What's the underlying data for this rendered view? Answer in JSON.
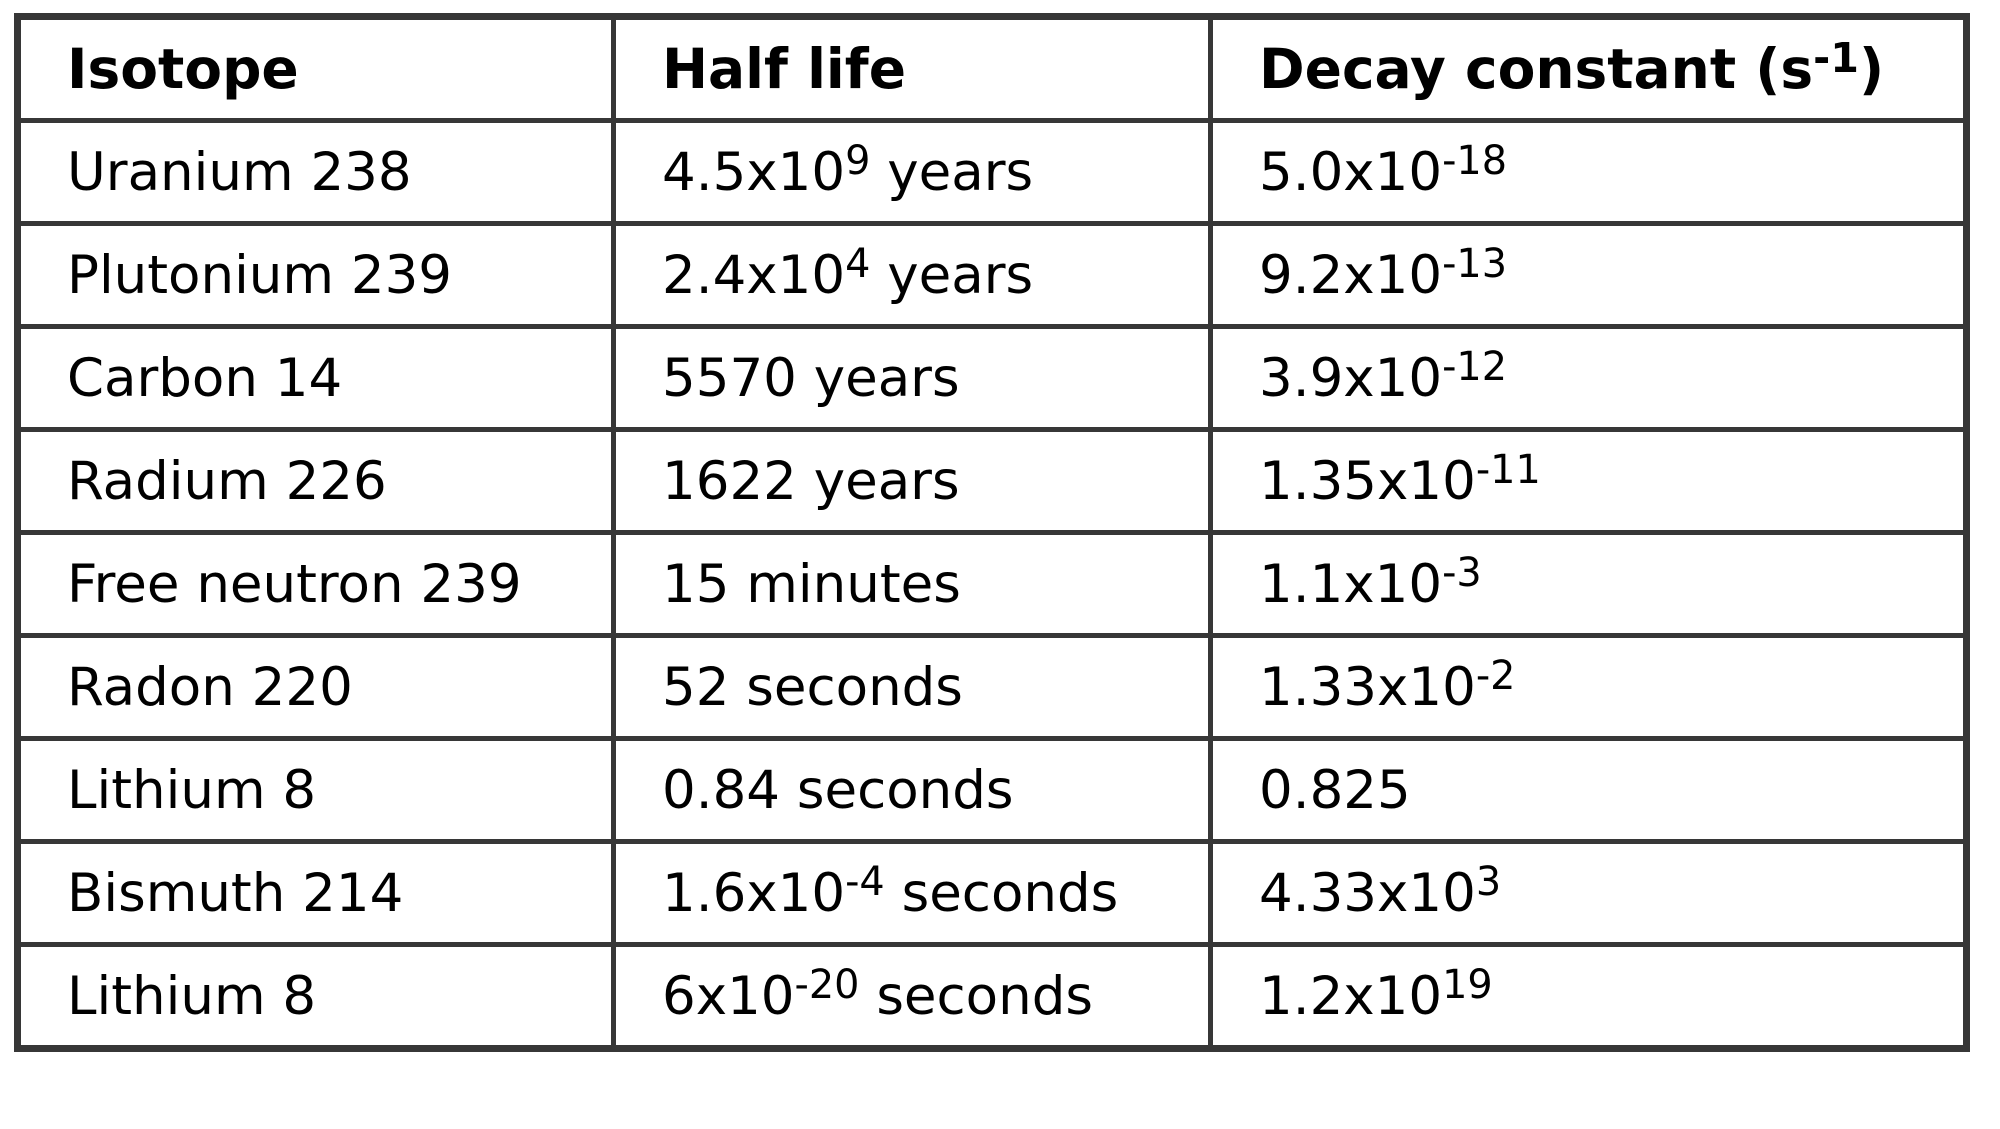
{
  "page": {
    "background": "#ffffff",
    "border_color": "#373737",
    "text_color": "#000000"
  },
  "table": {
    "columns": [
      {
        "label": "Isotope"
      },
      {
        "label": "Half life"
      },
      {
        "label": "Decay constant (s^-1)"
      }
    ],
    "rows": [
      [
        "Uranium 238",
        "4.5x10^9 years",
        "5.0x10^-18"
      ],
      [
        "Plutonium 239",
        "2.4x10^4 years",
        "9.2x10^-13"
      ],
      [
        "Carbon 14",
        "5570 years",
        "3.9x10^-12"
      ],
      [
        "Radium 226",
        "1622 years",
        "1.35x10^-11"
      ],
      [
        "Free neutron 239",
        "15 minutes",
        "1.1x10^-3"
      ],
      [
        "Radon 220",
        "52 seconds",
        "1.33x10^-2"
      ],
      [
        "Lithium 8",
        "0.84 seconds",
        "0.825"
      ],
      [
        "Bismuth 214",
        "1.6x10^-4 seconds",
        "4.33x10^3"
      ],
      [
        "Lithium 8",
        "6x10^-20 seconds",
        "1.2x10^19"
      ]
    ]
  }
}
